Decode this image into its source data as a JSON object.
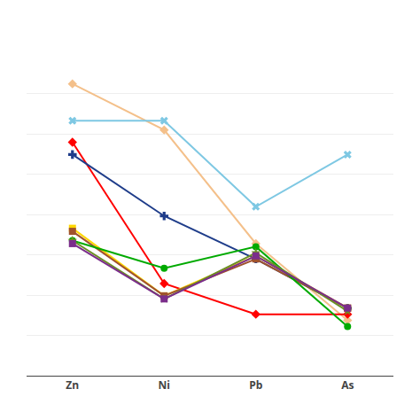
{
  "chart_data": {
    "type": "line",
    "categories": [
      "Zn",
      "Ni",
      "Pb",
      "As"
    ],
    "series": [
      {
        "color": "#F4C08A",
        "values": [
          95,
          80,
          43,
          18
        ],
        "marker": "diamond"
      },
      {
        "color": "#7EC8E3",
        "values": [
          83,
          83,
          55,
          72
        ],
        "marker": "x"
      },
      {
        "color": "#FF0000",
        "values": [
          76,
          30,
          20,
          20
        ],
        "marker": "diamond"
      },
      {
        "color": "#1F3D8A",
        "values": [
          72,
          52,
          38,
          22
        ],
        "marker": "cross"
      },
      {
        "color": "#FFD700",
        "values": [
          48,
          26,
          39,
          22
        ],
        "marker": "square"
      },
      {
        "color": "#A0522D",
        "values": [
          47,
          26,
          38,
          22
        ],
        "marker": "square"
      },
      {
        "color": "#00AA00",
        "values": [
          44,
          35,
          42,
          16
        ],
        "marker": "circle"
      },
      {
        "color": "#6B8E23",
        "values": [
          44,
          25,
          40,
          21
        ],
        "marker": "star"
      },
      {
        "color": "#7B2D8B",
        "values": [
          43,
          25,
          39,
          22
        ],
        "marker": "square"
      }
    ],
    "ylim": [
      0,
      105
    ],
    "yticks": [
      0,
      13.125,
      26.25,
      39.375,
      52.5,
      65.625,
      78.75,
      91.875,
      105
    ],
    "grid": true,
    "tick_labels": "x"
  }
}
